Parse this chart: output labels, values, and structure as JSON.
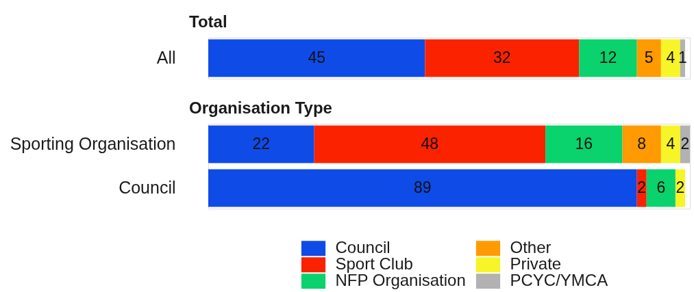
{
  "chart_data": [
    {
      "type": "bar",
      "title": "Total",
      "orientation": "horizontal",
      "stacked": true,
      "categories": [
        "All"
      ],
      "series": [
        {
          "name": "Council",
          "color": "#0f4be6",
          "values": [
            45
          ]
        },
        {
          "name": "Sport Club",
          "color": "#fb2200",
          "values": [
            32
          ]
        },
        {
          "name": "NFP Organisation",
          "color": "#0ad26c",
          "values": [
            12
          ]
        },
        {
          "name": "Other",
          "color": "#ff9a00",
          "values": [
            5
          ]
        },
        {
          "name": "Private",
          "color": "#f7f428",
          "values": [
            4
          ]
        },
        {
          "name": "PCYC/YMCA",
          "color": "#b2b2b2",
          "values": [
            1
          ]
        }
      ],
      "data_labels": true,
      "legend": "bottom",
      "tick_labels": "y"
    },
    {
      "type": "bar",
      "title": "Organisation Type",
      "orientation": "horizontal",
      "stacked": true,
      "categories": [
        "Sporting Organisation",
        "Council"
      ],
      "series": [
        {
          "name": "Council",
          "color": "#0f4be6",
          "values": [
            22,
            89
          ]
        },
        {
          "name": "Sport Club",
          "color": "#fb2200",
          "values": [
            48,
            2
          ]
        },
        {
          "name": "NFP Organisation",
          "color": "#0ad26c",
          "values": [
            16,
            6
          ]
        },
        {
          "name": "Other",
          "color": "#ff9a00",
          "values": [
            8,
            null
          ]
        },
        {
          "name": "Private",
          "color": "#f7f428",
          "values": [
            4,
            2
          ]
        },
        {
          "name": "PCYC/YMCA",
          "color": "#b2b2b2",
          "values": [
            2,
            null
          ]
        }
      ],
      "data_labels": true,
      "legend": "bottom",
      "tick_labels": "y"
    }
  ]
}
